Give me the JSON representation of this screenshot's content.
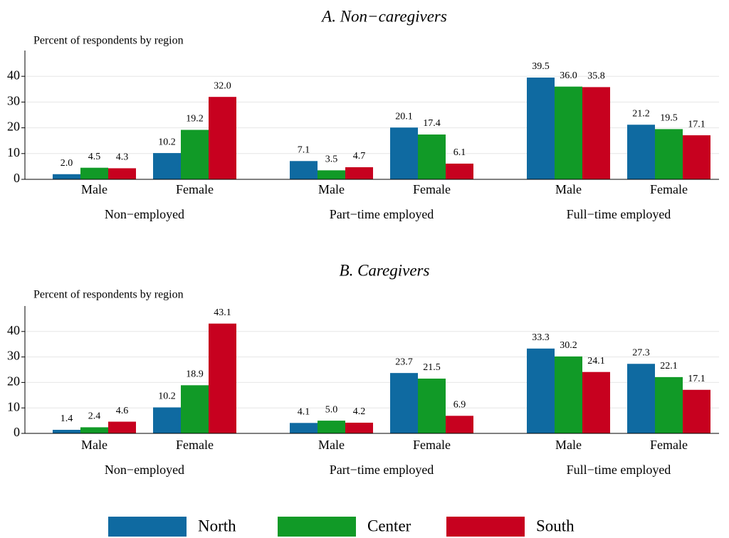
{
  "chart_data": [
    {
      "type": "bar",
      "title": "A. Non−caregivers",
      "ylabel": "Percent of respondents by region",
      "groups": [
        "Non−employed",
        "Part−time employed",
        "Full−time employed"
      ],
      "categories": [
        "Male",
        "Female",
        "Male",
        "Female",
        "Male",
        "Female"
      ],
      "series": [
        {
          "name": "North",
          "color": "#0f6aa1",
          "values": [
            2,
            10.2,
            7.1,
            20.1,
            39.5,
            21.2
          ],
          "value_labels": [
            "2.0",
            "10.2",
            "7.1",
            "20.1",
            "39.5",
            "21.2"
          ]
        },
        {
          "name": "Center",
          "color": "#119a27",
          "values": [
            4.5,
            19.2,
            3.5,
            17.4,
            36,
            19.5
          ],
          "value_labels": [
            "4.5",
            "19.2",
            "3.5",
            "17.4",
            "36.0",
            "19.5"
          ]
        },
        {
          "name": "South",
          "color": "#c7011f",
          "values": [
            4.3,
            32,
            4.7,
            6.1,
            35.8,
            17.1
          ],
          "value_labels": [
            "4.3",
            "32.0",
            "4.7",
            "6.1",
            "35.8",
            "17.1"
          ]
        }
      ],
      "ylim": [
        0,
        50
      ],
      "yticks": [
        0,
        10,
        20,
        30,
        40
      ],
      "grid": true
    },
    {
      "type": "bar",
      "title": "B. Caregivers",
      "ylabel": "Percent of respondents by region",
      "groups": [
        "Non−employed",
        "Part−time employed",
        "Full−time employed"
      ],
      "categories": [
        "Male",
        "Female",
        "Male",
        "Female",
        "Male",
        "Female"
      ],
      "series": [
        {
          "color": "#0f6aa1",
          "values": [
            1.4,
            10.2,
            4.1,
            23.7,
            33.3,
            27.3
          ],
          "value_labels": [
            "1.4",
            "10.2",
            "4.1",
            "23.7",
            "33.3",
            "27.3"
          ]
        },
        {
          "color": "#119a27",
          "values": [
            2.4,
            18.9,
            5,
            21.5,
            30.2,
            22.1
          ],
          "value_labels": [
            "2.4",
            "18.9",
            "5.0",
            "21.5",
            "30.2",
            "22.1"
          ]
        },
        {
          "color": "#c7011f",
          "values": [
            4.6,
            43.1,
            4.2,
            6.9,
            24.1,
            17.1
          ],
          "value_labels": [
            "4.6",
            "43.1",
            "4.2",
            "6.9",
            "24.1",
            "17.1"
          ]
        }
      ],
      "ylim": [
        0,
        50
      ],
      "yticks": [
        0,
        10,
        20,
        30,
        40
      ],
      "grid": true
    }
  ]
}
